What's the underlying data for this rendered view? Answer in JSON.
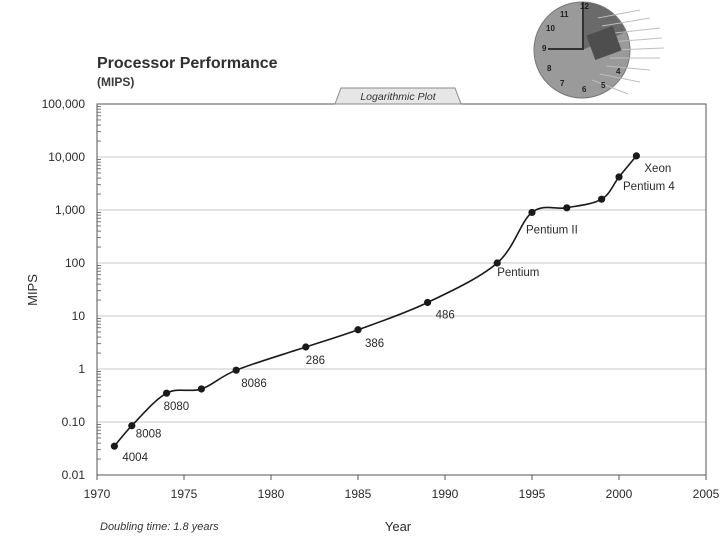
{
  "chart_data": {
    "type": "line",
    "title": "Processor Performance",
    "subtitle": "(MIPS)",
    "plot_tag": "Logarithmic Plot",
    "xlabel": "Year",
    "ylabel": "MIPS",
    "note": "Doubling time: 1.8 years",
    "y_scale": "log",
    "xlim": [
      1970,
      2005
    ],
    "ylim": [
      0.01,
      100000
    ],
    "x_ticks": [
      1970,
      1975,
      1980,
      1985,
      1990,
      1995,
      2000,
      2005
    ],
    "x_tick_labels": [
      "1970",
      "1975",
      "1980",
      "1985",
      "1990",
      "1995",
      "2000",
      "2005"
    ],
    "y_ticks": [
      0.01,
      0.1,
      1,
      10,
      100,
      1000,
      10000,
      100000
    ],
    "y_tick_labels": [
      "0.01",
      "0.10",
      "1",
      "10",
      "100",
      "1,000",
      "10,000",
      "100,000"
    ],
    "grid": "horizontal",
    "series": [
      {
        "x": [
          1971,
          1972,
          1974,
          1976,
          1978,
          1982,
          1985,
          1989,
          1993,
          1995,
          1997,
          1999,
          2000,
          2001
        ],
        "y": [
          0.035,
          0.085,
          0.35,
          0.42,
          0.95,
          2.6,
          5.5,
          18,
          100,
          900,
          1100,
          1600,
          4200,
          10500
        ],
        "labels": [
          "4004",
          "8008",
          "8080",
          "",
          "8086",
          "286",
          "386",
          "486",
          "Pentium",
          "Pentium II",
          "",
          "",
          "Pentium 4",
          "Xeon"
        ]
      }
    ],
    "clock_icon_numbers": [
      "12",
      "11",
      "10",
      "9",
      "8",
      "7",
      "6",
      "5",
      "4"
    ]
  }
}
